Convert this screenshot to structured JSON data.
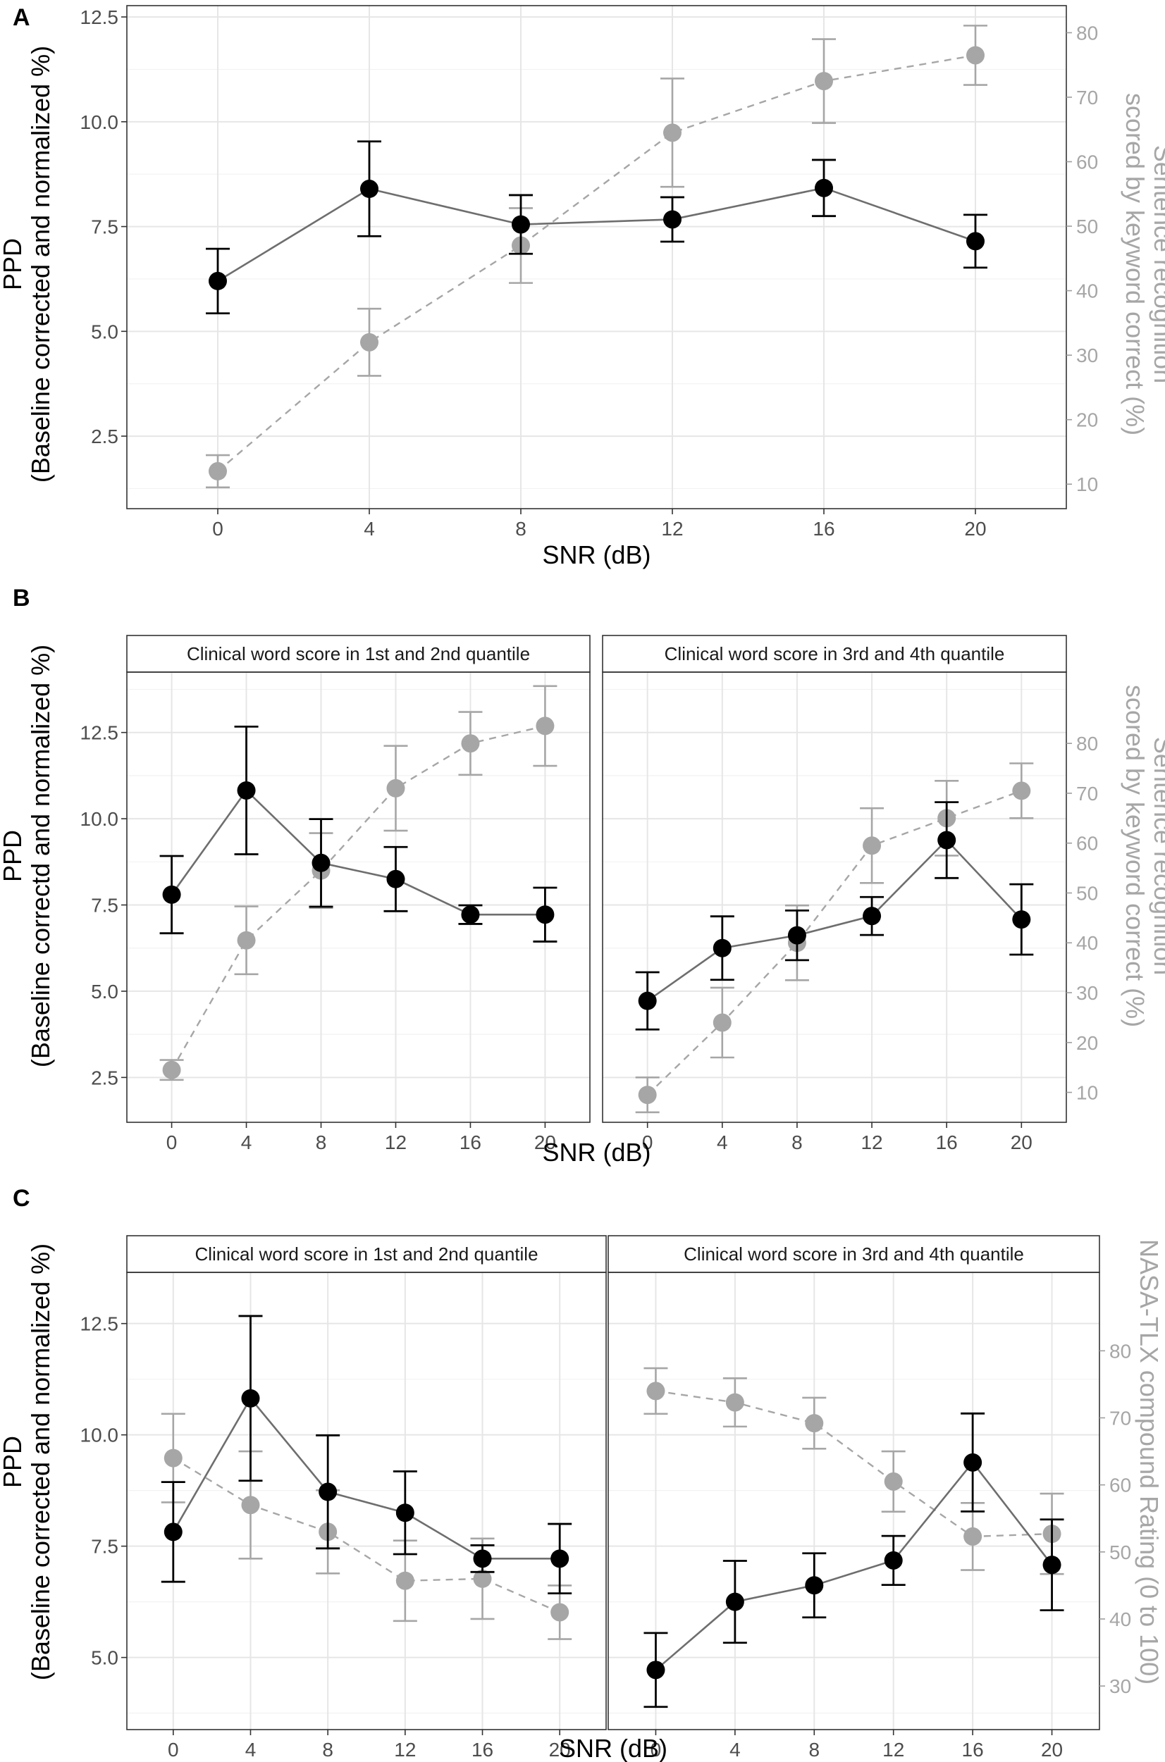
{
  "colors": {
    "primary_series": "#000000",
    "secondary_series": "#a6a6a6",
    "primary_line": "#6e6e6e",
    "frame": "#333333"
  },
  "chart_data": [
    {
      "type": "line",
      "panel_label": "A",
      "facets": [
        {
          "strip": "",
          "x": [
            0,
            4,
            8,
            12,
            16,
            20
          ],
          "series": [
            {
              "name": "PPD",
              "axis": "left",
              "values": [
                6.2,
                8.4,
                7.55,
                7.67,
                8.42,
                7.15
              ],
              "errors": [
                0.77,
                1.13,
                0.7,
                0.53,
                0.67,
                0.63
              ]
            },
            {
              "name": "Sentence recognition",
              "axis": "right",
              "values": [
                12,
                32,
                47,
                64.5,
                72.5,
                76.5
              ],
              "errors": [
                2.5,
                5.2,
                5.8,
                8.4,
                6.5,
                4.6
              ]
            }
          ]
        }
      ],
      "xlabel": "SNR (dB)",
      "ylabel_left": [
        "PPD",
        "(Baseline corrected and normalized %)"
      ],
      "ylabel_right": [
        "Sentence recognition",
        "scored by keyword correct (%)"
      ],
      "x_ticks": [
        "0",
        "4",
        "8",
        "12",
        "16",
        "20"
      ],
      "left_ticks": [
        "2.5",
        "5.0",
        "7.5",
        "10.0",
        "12.5"
      ],
      "right_ticks": [
        "10",
        "20",
        "30",
        "40",
        "50",
        "60",
        "70",
        "80"
      ],
      "xlim": [
        -2.4,
        22.4
      ],
      "ylim_left": [
        0.77,
        12.77
      ],
      "ylim_right": [
        6.2,
        84.2
      ]
    },
    {
      "type": "line",
      "panel_label": "B",
      "facets": [
        {
          "strip": "Clinical word score in 1st and 2nd quantile",
          "x": [
            0,
            4,
            8,
            12,
            16,
            20
          ],
          "series": [
            {
              "name": "PPD",
              "axis": "left",
              "values": [
                7.8,
                10.82,
                8.72,
                8.25,
                7.22,
                7.22
              ],
              "errors": [
                1.12,
                1.85,
                1.27,
                0.93,
                0.27,
                0.78
              ]
            },
            {
              "name": "Sentence recognition",
              "axis": "right",
              "values": [
                14.5,
                40.5,
                54.5,
                71,
                80,
                83.5
              ],
              "errors": [
                2,
                6.8,
                7.5,
                8.5,
                6.3,
                8
              ]
            }
          ]
        },
        {
          "strip": "Clinical word score in 3rd and 4th quantile",
          "x": [
            0,
            4,
            8,
            12,
            16,
            20
          ],
          "series": [
            {
              "name": "PPD",
              "axis": "left",
              "values": [
                4.72,
                6.25,
                6.62,
                7.18,
                9.38,
                7.08
              ],
              "errors": [
                0.83,
                0.92,
                0.72,
                0.55,
                1.1,
                1.02
              ]
            },
            {
              "name": "Sentence recognition",
              "axis": "right",
              "values": [
                9.5,
                24,
                40,
                59.5,
                65,
                70.5
              ],
              "errors": [
                3.5,
                7,
                7.5,
                7.5,
                7.5,
                5.5
              ]
            }
          ]
        }
      ],
      "xlabel": "SNR (dB)",
      "ylabel_left": [
        "PPD",
        "(Baseline correctd and normalized %)"
      ],
      "ylabel_right": [
        "Sentence recognition",
        "scored by keyword correct (%)"
      ],
      "x_ticks": [
        "0",
        "4",
        "8",
        "12",
        "16",
        "20"
      ],
      "left_ticks": [
        "2.5",
        "5.0",
        "7.5",
        "10.0",
        "12.5"
      ],
      "right_ticks": [
        "10",
        "20",
        "30",
        "40",
        "50",
        "60",
        "70",
        "80"
      ],
      "xlim": [
        -2.4,
        22.4
      ],
      "ylim_left": [
        1.2,
        14.25
      ],
      "ylim_right": [
        4,
        94.3
      ]
    },
    {
      "type": "line",
      "panel_label": "C",
      "facets": [
        {
          "strip": "Clinical word score in 1st and 2nd quantile",
          "x": [
            0,
            4,
            8,
            12,
            16,
            20
          ],
          "series": [
            {
              "name": "PPD",
              "axis": "left",
              "values": [
                7.82,
                10.82,
                8.72,
                8.25,
                7.22,
                7.22
              ],
              "errors": [
                1.12,
                1.85,
                1.27,
                0.93,
                0.3,
                0.78
              ]
            },
            {
              "name": "NASA-TLX",
              "axis": "right",
              "values": [
                64,
                57,
                53,
                45.7,
                46,
                41
              ],
              "errors": [
                6.6,
                8,
                6.2,
                6,
                6,
                4
              ]
            }
          ]
        },
        {
          "strip": "Clinical word score in 3rd and 4th quantile",
          "x": [
            0,
            4,
            8,
            12,
            16,
            20
          ],
          "series": [
            {
              "name": "PPD",
              "axis": "left",
              "values": [
                4.72,
                6.25,
                6.62,
                7.18,
                9.38,
                7.08
              ],
              "errors": [
                0.83,
                0.92,
                0.72,
                0.55,
                1.1,
                1.02
              ]
            },
            {
              "name": "NASA-TLX",
              "axis": "right",
              "values": [
                74,
                72.3,
                69.2,
                60.5,
                52.3,
                52.7
              ],
              "errors": [
                3.4,
                3.6,
                3.8,
                4.5,
                5,
                6
              ]
            }
          ]
        }
      ],
      "xlabel": "SNR (dB)",
      "ylabel_left": [
        "PPD",
        "(Baseline corrected and normalized %)"
      ],
      "ylabel_right": [
        "NASA-TLX compound Rating (0 to 100)"
      ],
      "x_ticks": [
        "0",
        "4",
        "8",
        "12",
        "16",
        "20"
      ],
      "left_ticks": [
        "5.0",
        "7.5",
        "10.0",
        "12.5"
      ],
      "right_ticks": [
        "30",
        "40",
        "50",
        "60",
        "70",
        "80"
      ],
      "xlim": [
        -2.4,
        22.4
      ],
      "ylim_left": [
        3.38,
        13.65
      ],
      "ylim_right": [
        23.5,
        91.7
      ]
    }
  ]
}
